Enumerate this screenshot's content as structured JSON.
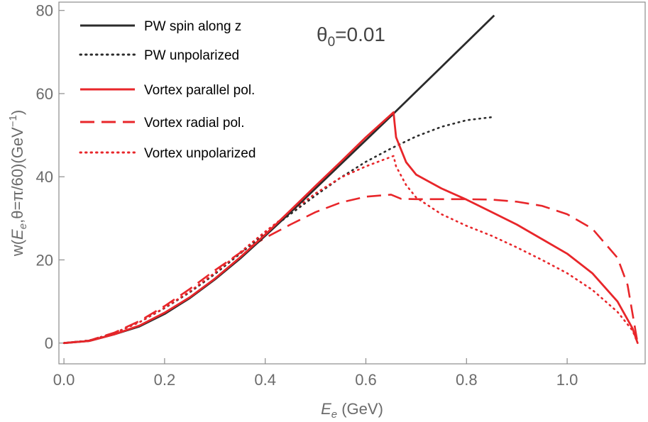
{
  "chart_data": {
    "type": "line",
    "annotation": "θ0=0.01",
    "annotation_parts": {
      "base": "θ",
      "sub": "0",
      "rest": "=0.01"
    },
    "xlabel": {
      "var": "E",
      "sub": "e",
      "unit": " (GeV)"
    },
    "ylabel": {
      "pre": "w(",
      "var": "E",
      "sub": "e",
      "mid": ",θ=π/60)(GeV",
      "sup": "−1",
      "post": ")"
    },
    "xlim": [
      -0.01,
      1.155
    ],
    "ylim": [
      -5,
      82
    ],
    "xticks": [
      0.0,
      0.2,
      0.4,
      0.6,
      0.8,
      1.0
    ],
    "xtick_labels": [
      "0.0",
      "0.2",
      "0.4",
      "0.6",
      "0.8",
      "1.0"
    ],
    "yticks": [
      0,
      20,
      40,
      60,
      80
    ],
    "ytick_labels": [
      "0",
      "20",
      "40",
      "60",
      "80"
    ],
    "grid": false,
    "legend_position": "top-left",
    "series": [
      {
        "name": "PW spin along z",
        "color": "#2b2b2b",
        "style": "solid",
        "x": [
          0,
          0.05,
          0.1,
          0.15,
          0.2,
          0.25,
          0.3,
          0.35,
          0.4,
          0.45,
          0.5,
          0.55,
          0.6,
          0.65,
          0.7,
          0.75,
          0.8,
          0.855
        ],
        "y": [
          0,
          0.5,
          2.1,
          4.0,
          7.0,
          10.8,
          15.3,
          20.3,
          25.8,
          31.4,
          37.2,
          43.0,
          48.8,
          54.6,
          60.5,
          66.4,
          72.3,
          78.8
        ]
      },
      {
        "name": "PW unpolarized",
        "color": "#2b2b2b",
        "style": "dotted",
        "x": [
          0,
          0.05,
          0.1,
          0.15,
          0.2,
          0.25,
          0.3,
          0.35,
          0.4,
          0.45,
          0.5,
          0.55,
          0.6,
          0.65,
          0.7,
          0.75,
          0.8,
          0.855
        ],
        "y": [
          0,
          0.6,
          2.4,
          5.0,
          8.4,
          12.2,
          16.6,
          21.5,
          26.4,
          31.0,
          35.5,
          39.8,
          43.6,
          46.8,
          49.7,
          52.0,
          53.6,
          54.4
        ]
      },
      {
        "name": "Vortex parallel pol.",
        "color": "#e8262a",
        "style": "solid",
        "x": [
          0,
          0.05,
          0.1,
          0.15,
          0.2,
          0.25,
          0.3,
          0.35,
          0.4,
          0.45,
          0.5,
          0.55,
          0.6,
          0.655,
          0.657,
          0.66,
          0.68,
          0.7,
          0.75,
          0.8,
          0.85,
          0.9,
          0.95,
          1.0,
          1.05,
          1.1,
          1.13,
          1.14
        ],
        "y": [
          0,
          0.5,
          2.1,
          4.2,
          7.3,
          11.0,
          15.5,
          20.6,
          26.1,
          31.9,
          37.8,
          43.6,
          49.5,
          55.5,
          53.0,
          49.5,
          43.5,
          40.5,
          37.2,
          34.5,
          31.5,
          28.5,
          25.0,
          21.5,
          16.8,
          10.0,
          3.5,
          0
        ]
      },
      {
        "name": "Vortex radial pol.",
        "color": "#e8262a",
        "style": "dashed",
        "x": [
          0,
          0.05,
          0.1,
          0.15,
          0.2,
          0.25,
          0.3,
          0.35,
          0.4,
          0.45,
          0.5,
          0.55,
          0.6,
          0.65,
          0.67,
          0.7,
          0.75,
          0.8,
          0.85,
          0.9,
          0.95,
          1.0,
          1.05,
          1.1,
          1.12,
          1.14
        ],
        "y": [
          0,
          0.6,
          2.5,
          5.3,
          8.9,
          13.0,
          17.5,
          21.7,
          25.3,
          28.5,
          31.5,
          33.8,
          35.2,
          35.7,
          34.7,
          34.6,
          34.6,
          34.6,
          34.5,
          34.0,
          33.0,
          31.0,
          27.5,
          20.5,
          14.0,
          0
        ]
      },
      {
        "name": "Vortex unpolarized",
        "color": "#e8262a",
        "style": "dotted",
        "x": [
          0,
          0.05,
          0.1,
          0.15,
          0.2,
          0.25,
          0.3,
          0.35,
          0.4,
          0.45,
          0.5,
          0.55,
          0.6,
          0.655,
          0.66,
          0.68,
          0.7,
          0.75,
          0.8,
          0.85,
          0.9,
          0.95,
          1.0,
          1.05,
          1.1,
          1.13,
          1.14
        ],
        "y": [
          0,
          0.6,
          2.4,
          5.0,
          8.5,
          12.4,
          16.9,
          21.8,
          26.8,
          31.5,
          36.0,
          39.8,
          42.5,
          45.0,
          42.5,
          38.0,
          35.0,
          31.0,
          28.2,
          25.8,
          23.0,
          20.0,
          16.8,
          12.8,
          7.5,
          3.0,
          0
        ]
      }
    ]
  }
}
